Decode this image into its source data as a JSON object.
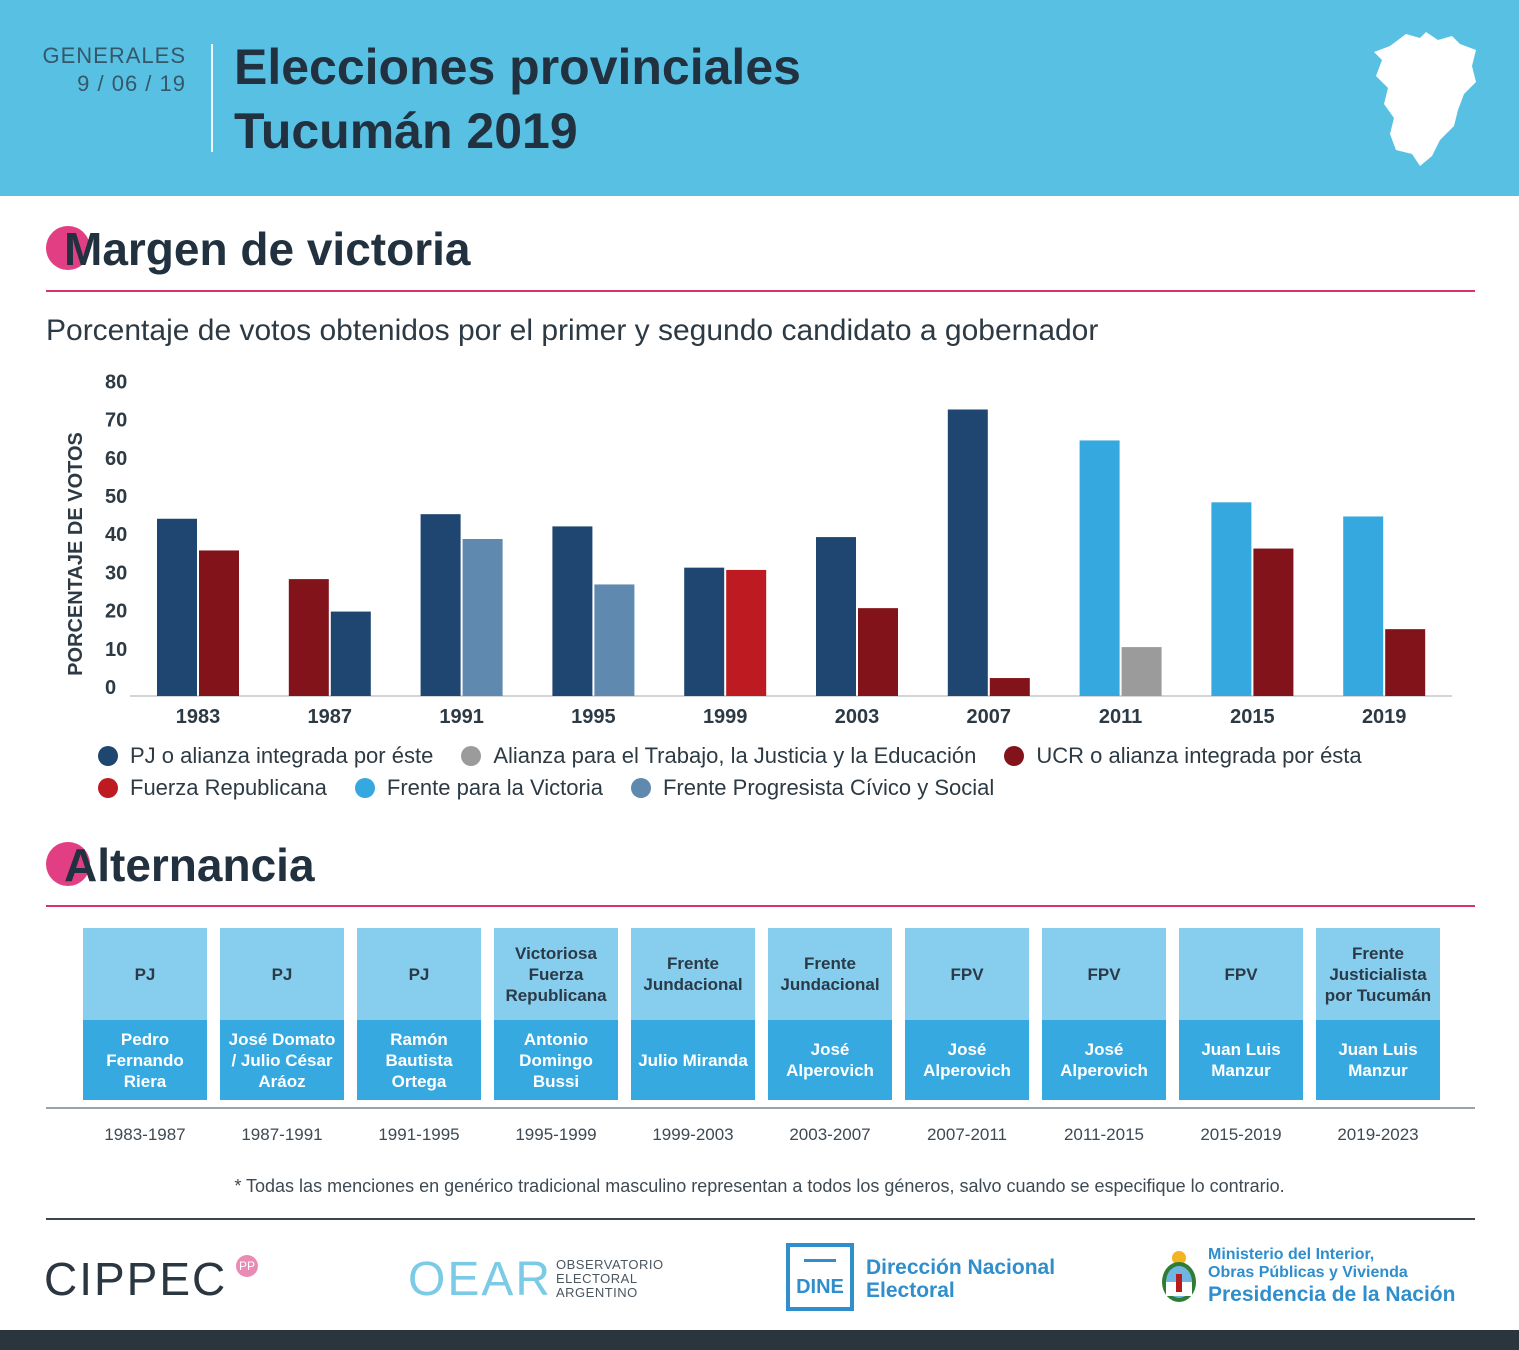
{
  "header": {
    "small_label": "GENERALES",
    "date": "9 / 06 / 19",
    "title_line1": "Elecciones provinciales",
    "title_line2": "Tucumán 2019"
  },
  "section1": {
    "title": "Margen de victoria",
    "subtitle": "Porcentaje de votos obtenidos por el primer y segundo candidato a gobernador"
  },
  "colors": {
    "pj": "#1f4670",
    "atje": "#9b9b9b",
    "ucr": "#82131b",
    "fr": "#bd1b21",
    "fpv": "#35a8e0",
    "fpcs": "#5f89ae",
    "accent": "#e23e84",
    "header_bg": "#58c1e3"
  },
  "chart_data": {
    "type": "bar",
    "ylabel": "PORCENTAJE DE VOTOS",
    "xlabel": "",
    "ylim": [
      0,
      80
    ],
    "yticks": [
      "0",
      "10",
      "20",
      "30",
      "40",
      "50",
      "60",
      "70",
      "80"
    ],
    "categories": [
      "1983",
      "1987",
      "1991",
      "1995",
      "1999",
      "2003",
      "2007",
      "2011",
      "2015",
      "2019"
    ],
    "pairs": [
      [
        {
          "party": "pj",
          "value": 46.4
        },
        {
          "party": "ucr",
          "value": 38.1
        }
      ],
      [
        {
          "party": "ucr",
          "value": 30.6
        },
        {
          "party": "pj",
          "value": 22.1
        }
      ],
      [
        {
          "party": "pj",
          "value": 47.6
        },
        {
          "party": "fpcs",
          "value": 41.1
        }
      ],
      [
        {
          "party": "pj",
          "value": 44.4
        },
        {
          "party": "fpcs",
          "value": 29.2
        }
      ],
      [
        {
          "party": "pj",
          "value": 33.6
        },
        {
          "party": "fr",
          "value": 33.0
        }
      ],
      [
        {
          "party": "pj",
          "value": 41.6
        },
        {
          "party": "ucr",
          "value": 23.0
        }
      ],
      [
        {
          "party": "pj",
          "value": 75.0
        },
        {
          "party": "ucr",
          "value": 4.7
        }
      ],
      [
        {
          "party": "fpv",
          "value": 66.9
        },
        {
          "party": "atje",
          "value": 12.8
        }
      ],
      [
        {
          "party": "fpv",
          "value": 50.7
        },
        {
          "party": "ucr",
          "value": 38.6
        }
      ],
      [
        {
          "party": "fpv",
          "value": 47.0
        },
        {
          "party": "ucr",
          "value": 17.5
        }
      ]
    ],
    "legend": [
      [
        {
          "key": "pj",
          "label": "PJ o alianza integrada por éste"
        },
        {
          "key": "atje",
          "label": "Alianza para el Trabajo, la Justicia y la Educación"
        },
        {
          "key": "ucr",
          "label": "UCR o alianza integrada por ésta"
        }
      ],
      [
        {
          "key": "fr",
          "label": "Fuerza Republicana"
        },
        {
          "key": "fpv",
          "label": "Frente para la Victoria"
        },
        {
          "key": "fpcs",
          "label": "Frente Progresista Cívico y Social"
        }
      ]
    ]
  },
  "section2": {
    "title": "Alternancia"
  },
  "alternancia": [
    {
      "party": "PJ",
      "governor": "Pedro Fernando Riera",
      "period": "1983-1987"
    },
    {
      "party": "PJ",
      "governor": "José Domato / Julio César Aráoz",
      "period": "1987-1991"
    },
    {
      "party": "PJ",
      "governor": "Ramón Bautista Ortega",
      "period": "1991-1995"
    },
    {
      "party": "Victoriosa Fuerza Republicana",
      "governor": "Antonio Domingo Bussi",
      "period": "1995-1999"
    },
    {
      "party": "Frente Jundacional",
      "governor": "Julio Miranda",
      "period": "1999-2003"
    },
    {
      "party": "Frente Jundacional",
      "governor": "José Alperovich",
      "period": "2003-2007"
    },
    {
      "party": "FPV",
      "governor": "José Alperovich",
      "period": "2007-2011"
    },
    {
      "party": "FPV",
      "governor": "José Alperovich",
      "period": "2011-2015"
    },
    {
      "party": "FPV",
      "governor": "Juan Luis Manzur",
      "period": "2015-2019"
    },
    {
      "party": "Frente Justicialista por Tucumán",
      "governor": "Juan Luis Manzur",
      "period": "2019-2023"
    }
  ],
  "footnote": "* Todas las menciones en genérico tradicional masculino representan a todos los géneros, salvo cuando se especifique lo contrario.",
  "logos": {
    "cippec": "CIPPEC",
    "cippec_mark": "PP",
    "oear": "OEAR",
    "oear_sub": [
      "OBSERVATORIO",
      "ELECTORAL",
      "ARGENTINO"
    ],
    "dine": "DINE",
    "dine_name": [
      "Dirección Nacional",
      "Electoral"
    ],
    "ministerio": [
      "Ministerio del Interior,",
      "Obras Públicas y Vivienda"
    ],
    "presidencia": "Presidencia de la Nación"
  }
}
